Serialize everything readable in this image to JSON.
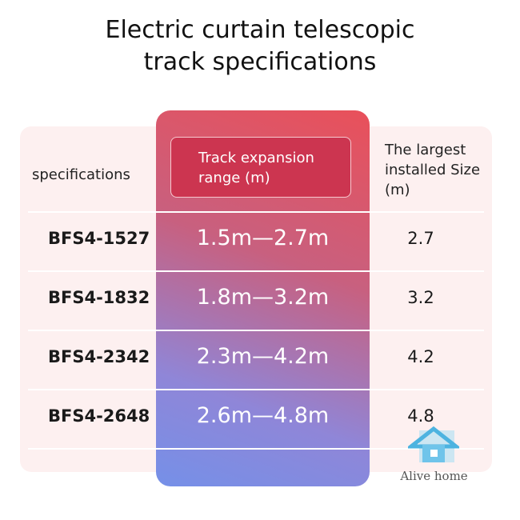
{
  "title": [
    "Electric curtain telescopic",
    "track specifications"
  ],
  "table": {
    "headers": [
      "specifications",
      "Track expansion range (m)",
      "The largest installed Size (m)"
    ],
    "rows": [
      [
        "BFS4-1527",
        "1.5m—2.7m",
        "2.7"
      ],
      [
        "BFS4-1832",
        "1.8m—3.2m",
        "3.2"
      ],
      [
        "BFS4-2342",
        "2.3m—4.2m",
        "4.2"
      ],
      [
        "BFS4-2648",
        "2.6m—4.8m",
        "4.8"
      ]
    ]
  },
  "watermark": "Alive home"
}
